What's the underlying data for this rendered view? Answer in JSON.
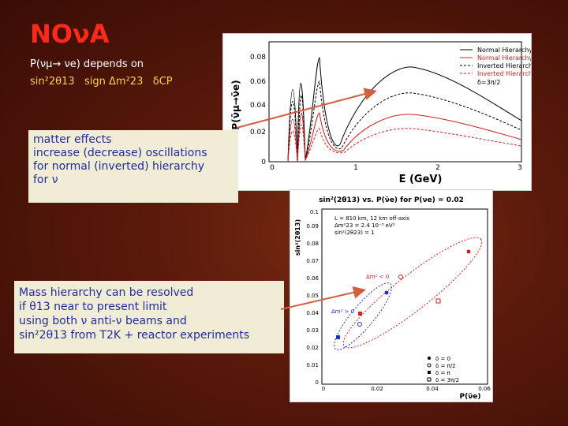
{
  "slide": {
    "title": "NOνA",
    "line1": "P(νμ→ νe) depends on",
    "line2_prefix": "sin²2θ13",
    "line2_sign": "sign Δm²23",
    "line2_delta": "δCP"
  },
  "box_matter": {
    "lines": [
      "matter effects",
      "increase (decrease) oscillations",
      "for normal (inverted) hierarchy",
      "for ν"
    ]
  },
  "box_mass": {
    "lines": [
      "Mass hierarchy can be resolved",
      "if θ13 near to present limit",
      "using both ν anti-ν beams and",
      "sin²2θ13 from T2K + reactor experiments"
    ]
  },
  "plot1": {
    "xlabel": "E (GeV)",
    "ylabel": "P(ν̄μ→ν̄e)",
    "yticks": [
      "0",
      "0.02",
      "0.04",
      "0.06",
      "0.08"
    ],
    "xticks": [
      "0",
      "1",
      "2",
      "3"
    ],
    "legend": [
      "Normal Hierarchy",
      "Normal Hierarchy",
      "Inverted Hierarchy",
      "Inverted Hierarchy"
    ],
    "delta": "δ=3π/2",
    "colors": {
      "normal": "#000000",
      "inverted": "#d02020"
    }
  },
  "plot2": {
    "title": "sin²(2θ13) vs. P(ν̄e) for P(νe) = 0.02",
    "ylabel": "sin²(2θ13)",
    "xlabel": "P(ν̄e)",
    "yticks": [
      "0",
      "0.01",
      "0.02",
      "0.03",
      "0.04",
      "0.05",
      "0.06",
      "0.07",
      "0.08",
      "0.09",
      "0.1"
    ],
    "xticks": [
      "0",
      "0.02",
      "0.04",
      "0.06"
    ],
    "info": [
      "L = 810 km, 12 km off-axis",
      "Δm²23 = 2.4 10⁻³ eV²",
      "sin²(2θ23) = 1"
    ],
    "ann_pos": "Δm² < 0",
    "ann_neg": "Δm² > 0",
    "legend": [
      "δ = 0",
      "δ = π/2",
      "δ = π",
      "δ = 3π/2"
    ]
  }
}
